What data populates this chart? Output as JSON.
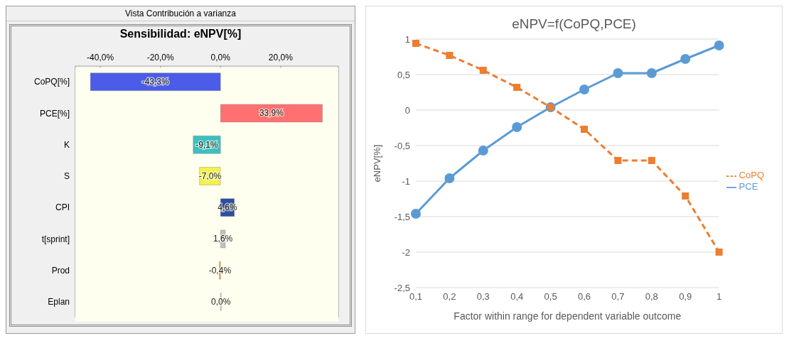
{
  "chart_data": [
    {
      "type": "bar",
      "orientation": "horizontal",
      "title": "Sensibilidad: eNPV[%]",
      "annotations": [
        "Vista Contribución a varianza"
      ],
      "categories": [
        "CoPQ[%]",
        "PCE[%]",
        "K",
        "S",
        "CPI",
        "t[sprint]",
        "Prod",
        "Eplan"
      ],
      "values": [
        -43.3,
        33.9,
        -9.1,
        -7.0,
        4.6,
        1.6,
        -0.4,
        0.0
      ],
      "colors": [
        "#4b5ce8",
        "#ff7070",
        "#3dbfbf",
        "#f2f24a",
        "#2b4f9e",
        "#c0c0c0",
        "#f0a040",
        "#c0c0c0"
      ],
      "value_labels": [
        "-43,3%",
        "33,9%",
        "-9,1%",
        "-7,0%",
        "4,6%",
        "1,6%",
        "-0,4%",
        "0,0%"
      ],
      "xlim": [
        -48.3,
        39.2
      ],
      "xticks": [
        {
          "value": -40,
          "label": "-40,0%"
        },
        {
          "value": -20,
          "label": "-20,0%"
        },
        {
          "value": 0,
          "label": "0,0%"
        },
        {
          "value": 20,
          "label": "20,0%"
        }
      ],
      "grid": "x"
    },
    {
      "type": "line",
      "title": "eNPV=f(CoPQ,PCE)",
      "xlabel": "Factor within range for dependent  variable outcome",
      "ylabel": "eNPV[%]",
      "categories": [
        "0,1",
        "0,2",
        "0,3",
        "0,4",
        "0,5",
        "0,6",
        "0,7",
        "0,8",
        "0,9",
        "1"
      ],
      "series": [
        {
          "name": "PCE",
          "color": "#5b9bd5",
          "marker": "circle",
          "line_style": "solid",
          "values": [
            -1.46,
            -0.96,
            -0.57,
            -0.24,
            0.04,
            0.29,
            0.52,
            0.52,
            0.72,
            0.91
          ]
        },
        {
          "name": "CoPQ",
          "color": "#ed7d31",
          "marker": "square",
          "line_style": "dashed",
          "values": [
            0.94,
            0.77,
            0.56,
            0.32,
            0.04,
            -0.27,
            -0.71,
            -0.71,
            -1.21,
            -2.0
          ]
        }
      ],
      "ylim": [
        -2.5,
        1
      ],
      "yticks": [
        {
          "value": -2.5,
          "label": "-2,5"
        },
        {
          "value": -2,
          "label": "-2"
        },
        {
          "value": -1.5,
          "label": "-1,5"
        },
        {
          "value": -1,
          "label": "-1"
        },
        {
          "value": -0.5,
          "label": "-0,5"
        },
        {
          "value": 0,
          "label": "0"
        },
        {
          "value": 0.5,
          "label": "0,5"
        },
        {
          "value": 1,
          "label": "1"
        }
      ],
      "grid": "y",
      "legend": "right"
    }
  ]
}
